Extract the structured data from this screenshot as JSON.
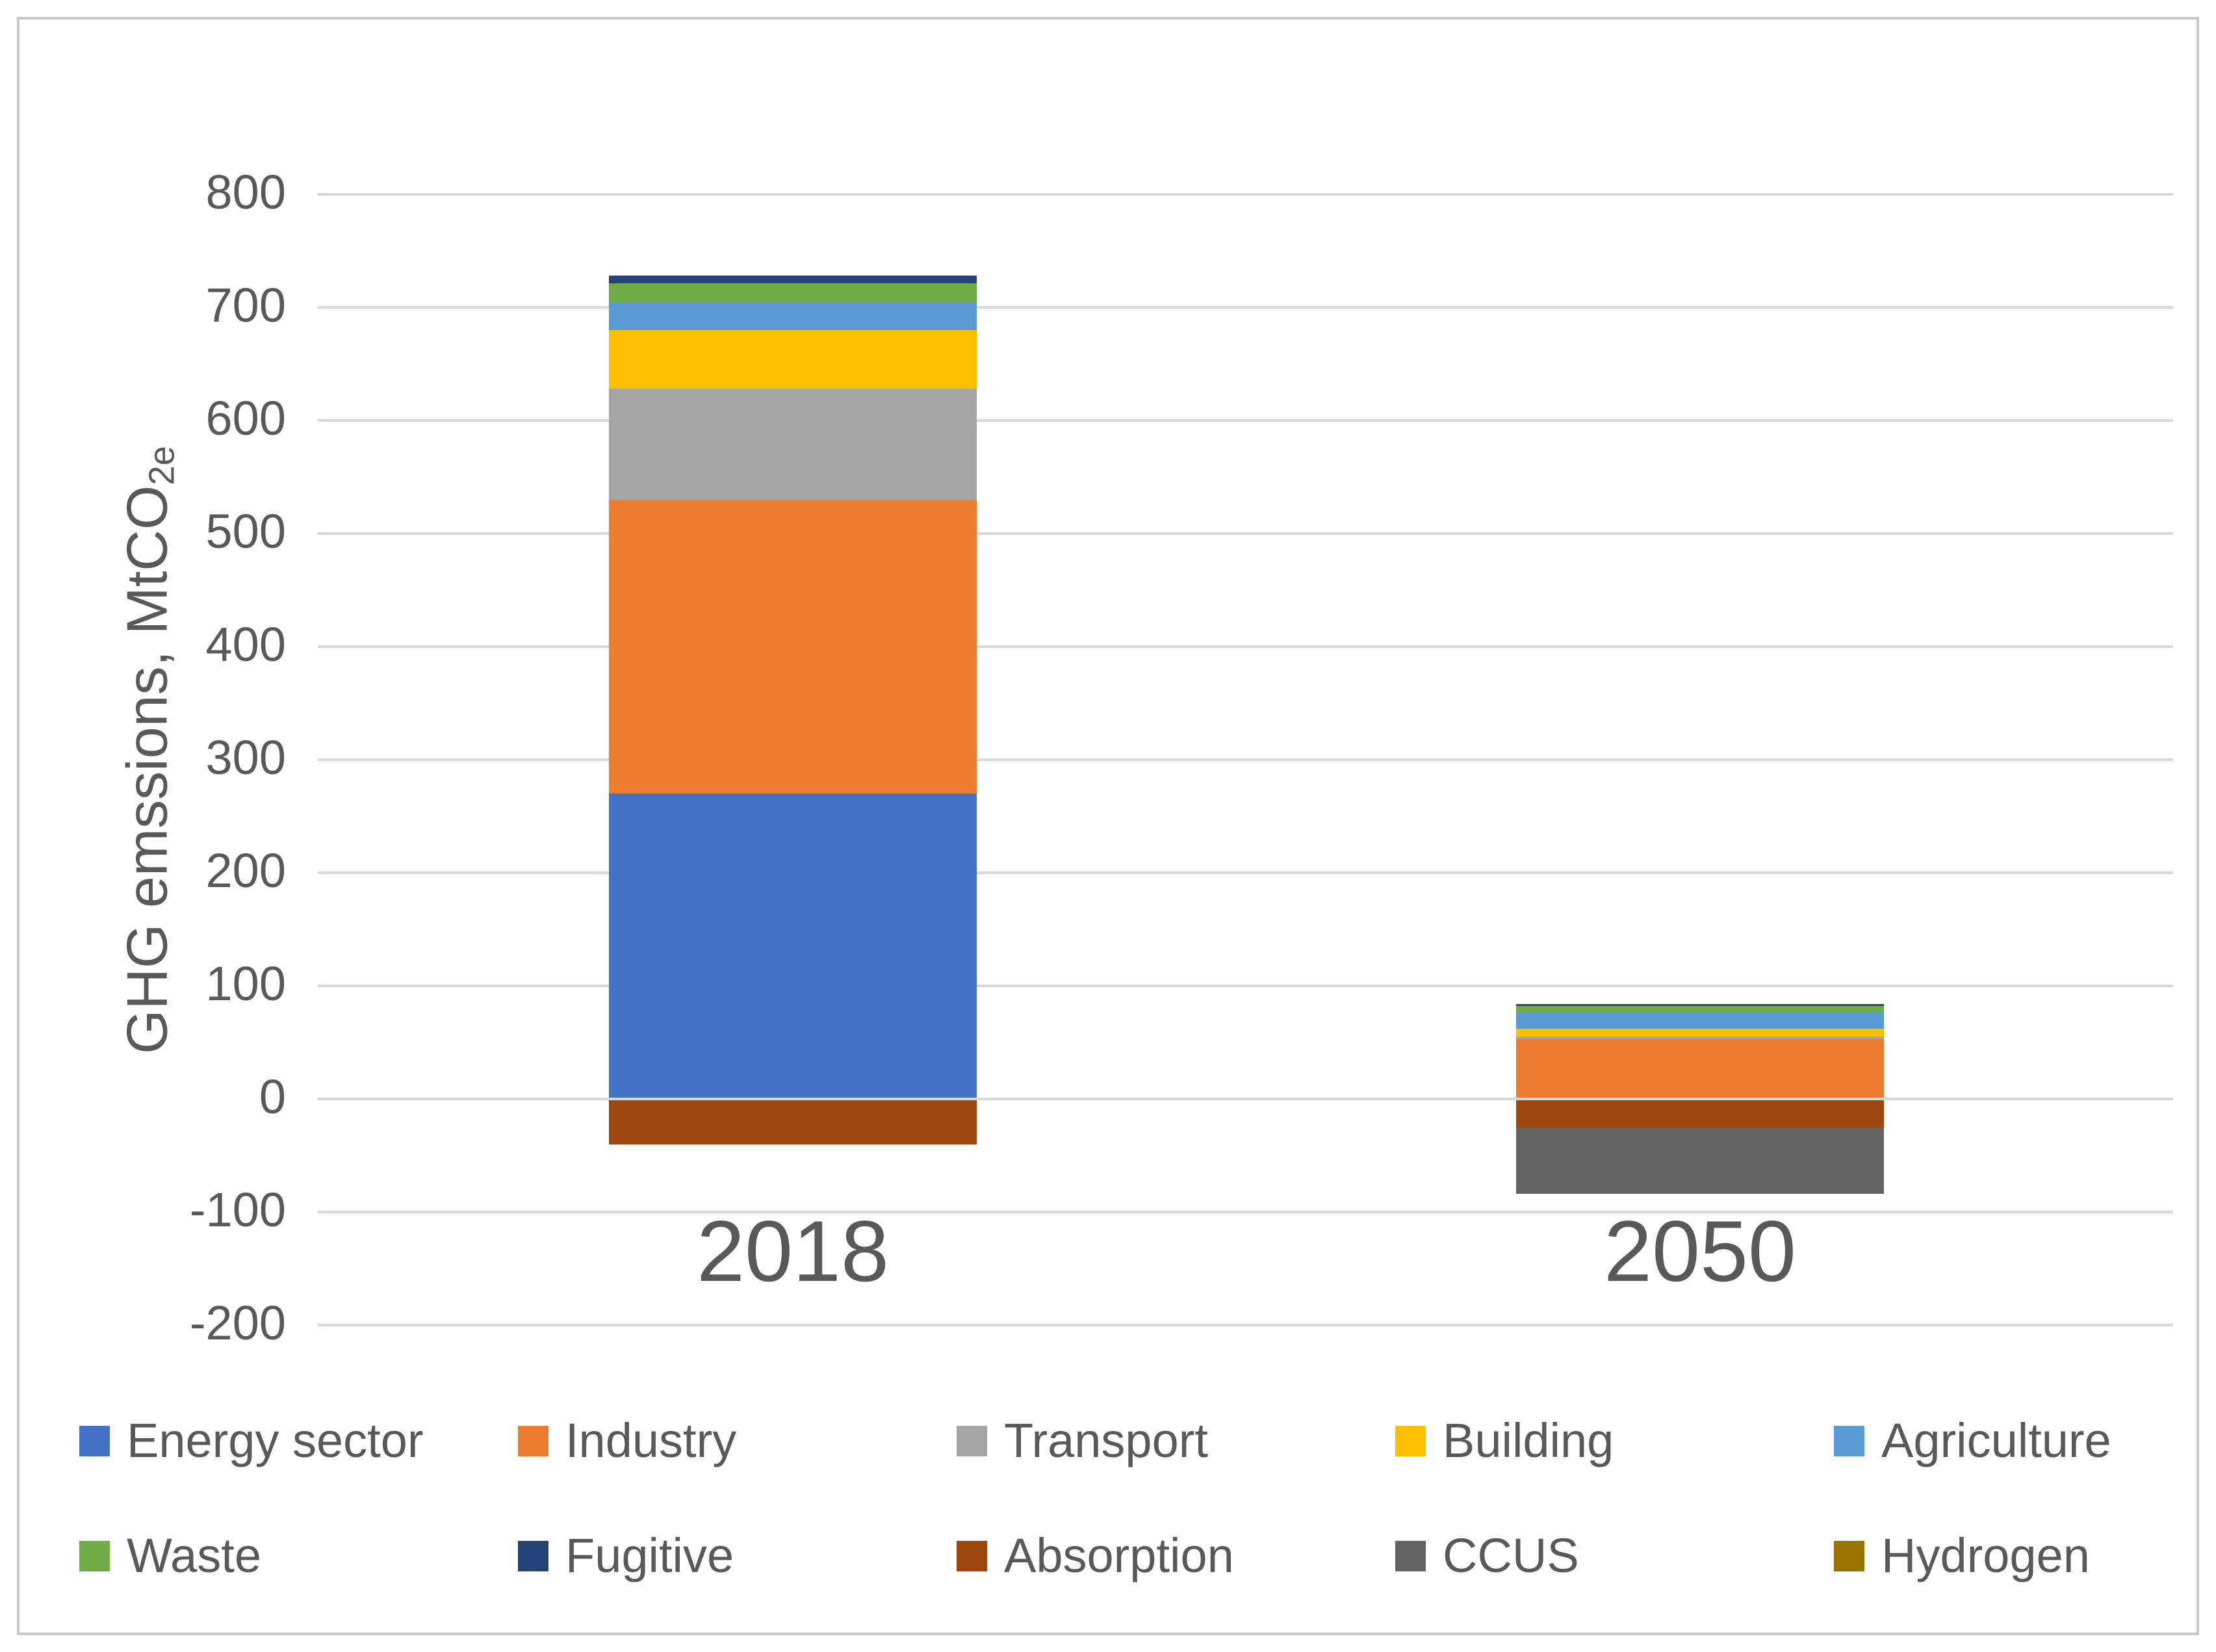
{
  "chart_data": {
    "type": "bar",
    "stacked": true,
    "categories": [
      "2018",
      "2050"
    ],
    "series": [
      {
        "name": "Energy sector",
        "color": "#4472C4",
        "values": [
          270,
          0
        ]
      },
      {
        "name": "Industry",
        "color": "#ED7D31",
        "values": [
          260,
          53
        ]
      },
      {
        "name": "Transport",
        "color": "#A5A5A5",
        "values": [
          98,
          2
        ]
      },
      {
        "name": "Building",
        "color": "#FFC000",
        "values": [
          52,
          7
        ]
      },
      {
        "name": "Agriculture",
        "color": "#5B9BD5",
        "values": [
          24,
          15
        ]
      },
      {
        "name": "Waste",
        "color": "#70AD47",
        "values": [
          17,
          5
        ]
      },
      {
        "name": "Fugitive",
        "color": "#264478",
        "values": [
          7,
          2
        ]
      },
      {
        "name": "Absorption",
        "color": "#9E480E",
        "values": [
          -40,
          -25
        ]
      },
      {
        "name": "CCUS",
        "color": "#636363",
        "values": [
          0,
          -59
        ]
      },
      {
        "name": "Hydrogen",
        "color": "#997300",
        "values": [
          0,
          0
        ]
      }
    ],
    "stack_totals": {
      "2018": {
        "top": 728,
        "bottom": -40
      },
      "2050": {
        "top": 84,
        "bottom": -84
      }
    },
    "ylabel_main": "GHG emssions, MtCO",
    "ylabel_sub": "2e",
    "y_ticks": [
      800,
      700,
      600,
      500,
      400,
      300,
      200,
      100,
      0,
      -100,
      -200
    ],
    "ylim": [
      -200,
      800
    ],
    "grid": true,
    "gridline_color": "#D9D9D9",
    "text_color": "#595959",
    "legend_position": "bottom",
    "legend_rows": 2
  }
}
